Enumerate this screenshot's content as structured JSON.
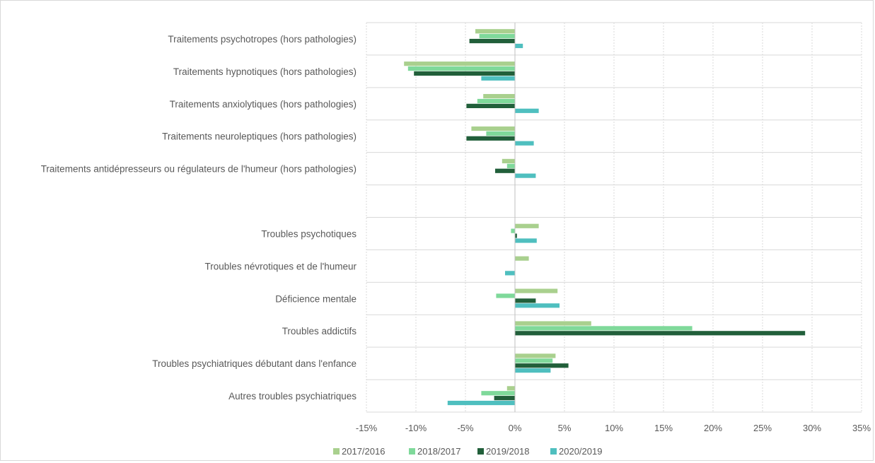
{
  "chart_data": {
    "type": "bar",
    "orientation": "horizontal",
    "title": "",
    "xlabel": "",
    "ylabel": "",
    "xlim": [
      -0.15,
      0.35
    ],
    "x_ticks": [
      -0.15,
      -0.1,
      -0.05,
      0,
      0.05,
      0.1,
      0.15,
      0.2,
      0.25,
      0.3,
      0.35
    ],
    "x_tick_labels": [
      "-15%",
      "-10%",
      "-5%",
      "0%",
      "5%",
      "10%",
      "15%",
      "20%",
      "25%",
      "30%",
      "35%"
    ],
    "grid": "vertical dotted, horizontal solid separators",
    "legend_position": "bottom",
    "categories": [
      "Traitements psychotropes (hors pathologies)",
      "Traitements hypnotiques (hors pathologies)",
      "Traitements anxiolytiques (hors pathologies)",
      "Traitements neuroleptiques (hors pathologies)",
      "Traitements antidépresseurs ou régulateurs de l'humeur (hors pathologies)",
      "",
      "Troubles psychotiques",
      "Troubles névrotiques et de l'humeur",
      "Déficience mentale",
      "Troubles addictifs",
      "Troubles psychiatriques débutant dans l'enfance",
      "Autres troubles psychiatriques"
    ],
    "series": [
      {
        "name": "2017/2016",
        "color": "#a9d08e",
        "values": [
          -0.04,
          -0.112,
          -0.032,
          -0.044,
          -0.013,
          null,
          0.024,
          0.014,
          0.043,
          0.077,
          0.041,
          -0.008
        ]
      },
      {
        "name": "2018/2017",
        "color": "#7fd99a",
        "values": [
          -0.036,
          -0.108,
          -0.038,
          -0.029,
          -0.008,
          null,
          -0.004,
          0.0,
          -0.019,
          0.179,
          0.038,
          -0.034
        ]
      },
      {
        "name": "2019/2018",
        "color": "#215f3a",
        "values": [
          -0.046,
          -0.102,
          -0.049,
          -0.049,
          -0.02,
          null,
          0.002,
          0.0,
          0.021,
          0.293,
          0.054,
          -0.021
        ]
      },
      {
        "name": "2020/2019",
        "color": "#4fbfbf",
        "values": [
          0.008,
          -0.034,
          0.024,
          0.019,
          0.021,
          null,
          0.022,
          -0.01,
          0.045,
          0.0,
          0.036,
          -0.068
        ]
      }
    ]
  }
}
